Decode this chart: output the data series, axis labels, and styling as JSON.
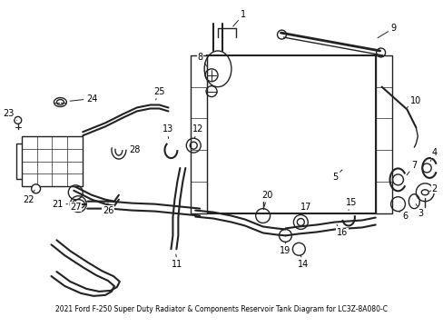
{
  "title": "2021 Ford F-250 Super Duty Radiator & Components Reservoir Tank Diagram for LC3Z-8A080-C",
  "bg_color": "#ffffff",
  "line_color": "#222222",
  "text_color": "#000000",
  "fig_width": 4.89,
  "fig_height": 3.6,
  "dpi": 100
}
